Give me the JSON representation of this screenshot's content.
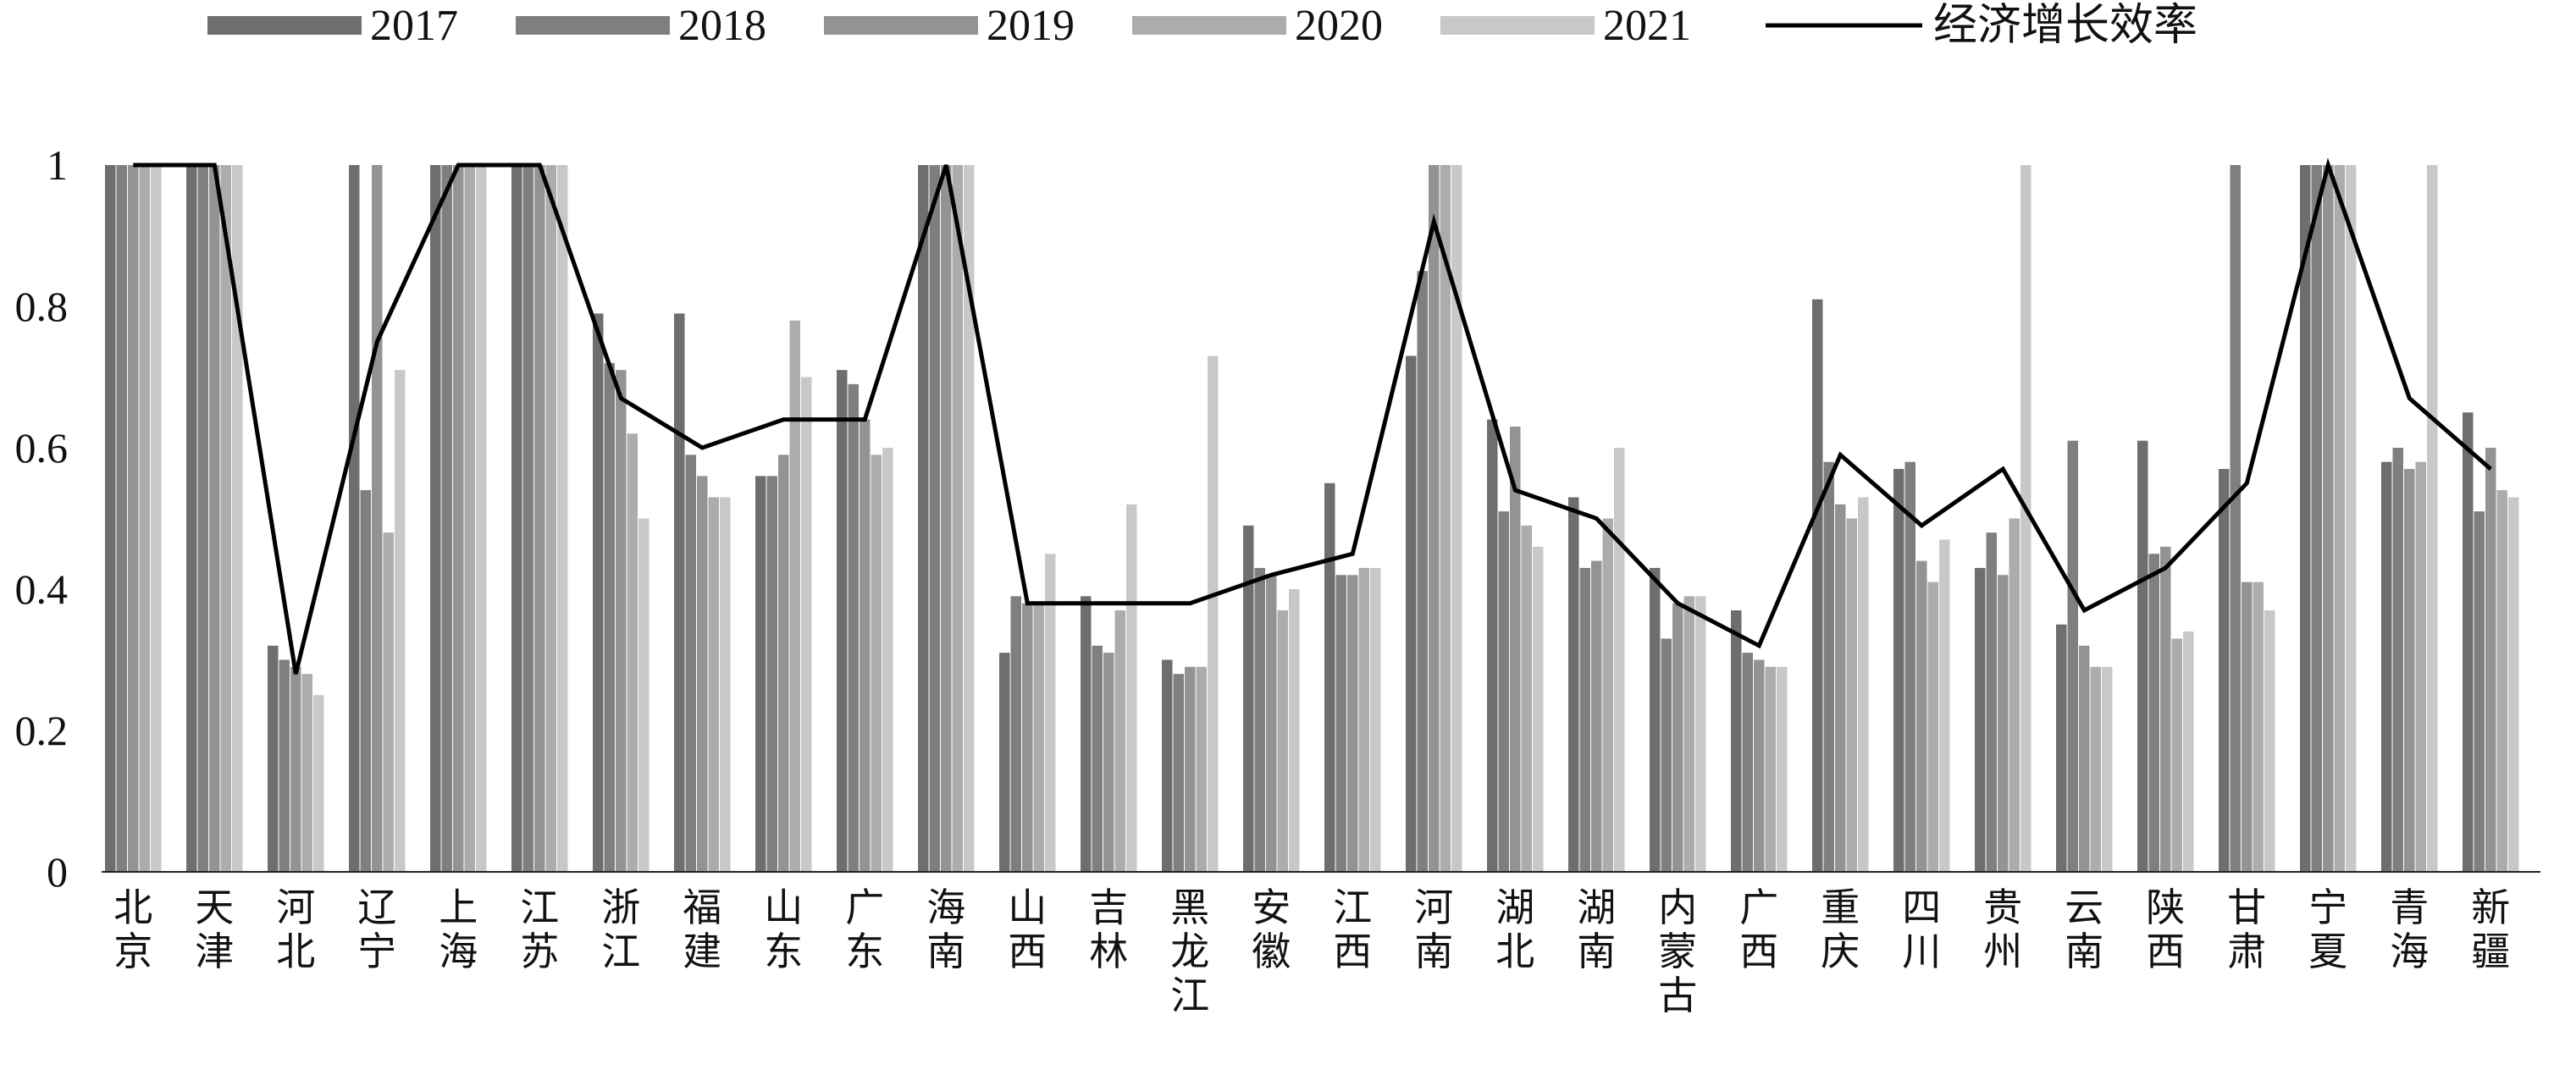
{
  "chart_data": {
    "type": "bar",
    "title": "",
    "xlabel": "",
    "ylabel": "",
    "ylim": [
      0,
      1
    ],
    "yticks": [
      "0",
      "0.2",
      "0.4",
      "0.6",
      "0.8",
      "1"
    ],
    "legend_position": "top",
    "categories": [
      "北京",
      "天津",
      "河北",
      "辽宁",
      "上海",
      "江苏",
      "浙江",
      "福建",
      "山东",
      "广东",
      "海南",
      "山西",
      "吉林",
      "黑龙江",
      "安徽",
      "江西",
      "河南",
      "湖北",
      "湖南",
      "内蒙古",
      "广西",
      "重庆",
      "四川",
      "贵州",
      "云南",
      "陕西",
      "甘肃",
      "宁夏",
      "青海",
      "新疆"
    ],
    "series": [
      {
        "name": "2017",
        "color": "#6e6e6e",
        "values": [
          1,
          1,
          0.32,
          1,
          1,
          1,
          0.79,
          0.79,
          0.56,
          0.71,
          1,
          0.31,
          0.39,
          0.3,
          0.49,
          0.55,
          0.73,
          0.64,
          0.53,
          0.43,
          0.37,
          0.81,
          0.57,
          0.43,
          0.35,
          0.61,
          0.57,
          1,
          0.58,
          0.65
        ]
      },
      {
        "name": "2018",
        "color": "#7f7f7f",
        "values": [
          1,
          1,
          0.3,
          0.54,
          1,
          1,
          0.72,
          0.59,
          0.56,
          0.69,
          1,
          0.39,
          0.32,
          0.28,
          0.43,
          0.42,
          0.85,
          0.51,
          0.43,
          0.33,
          0.31,
          0.58,
          0.58,
          0.48,
          0.61,
          0.45,
          1,
          1,
          0.6,
          0.51
        ]
      },
      {
        "name": "2019",
        "color": "#939393",
        "values": [
          1,
          1,
          0.29,
          1,
          1,
          1,
          0.71,
          0.56,
          0.59,
          0.64,
          1,
          0.38,
          0.31,
          0.29,
          0.42,
          0.42,
          1,
          0.63,
          0.44,
          0.38,
          0.3,
          0.52,
          0.44,
          0.42,
          0.32,
          0.46,
          0.41,
          1,
          0.57,
          0.6
        ]
      },
      {
        "name": "2020",
        "color": "#acacac",
        "values": [
          1,
          1,
          0.28,
          0.48,
          1,
          1,
          0.62,
          0.53,
          0.78,
          0.59,
          1,
          0.38,
          0.37,
          0.29,
          0.37,
          0.43,
          1,
          0.49,
          0.5,
          0.39,
          0.29,
          0.5,
          0.41,
          0.5,
          0.29,
          0.33,
          0.41,
          1,
          0.58,
          0.54
        ]
      },
      {
        "name": "2021",
        "color": "#c8c8c8",
        "values": [
          1,
          1,
          0.25,
          0.71,
          1,
          1,
          0.5,
          0.53,
          0.7,
          0.6,
          1,
          0.45,
          0.52,
          0.73,
          0.4,
          0.43,
          1,
          0.46,
          0.6,
          0.39,
          0.29,
          0.53,
          0.47,
          1,
          0.29,
          0.34,
          0.37,
          1,
          1,
          0.53
        ]
      }
    ],
    "line": {
      "name": "经济增长效率",
      "color": "#000000",
      "values": [
        1,
        1,
        0.28,
        0.75,
        1,
        1,
        0.67,
        0.6,
        0.64,
        0.64,
        1,
        0.38,
        0.38,
        0.38,
        0.42,
        0.45,
        0.92,
        0.54,
        0.5,
        0.38,
        0.32,
        0.59,
        0.49,
        0.57,
        0.37,
        0.43,
        0.55,
        1,
        0.67,
        0.57
      ]
    }
  }
}
